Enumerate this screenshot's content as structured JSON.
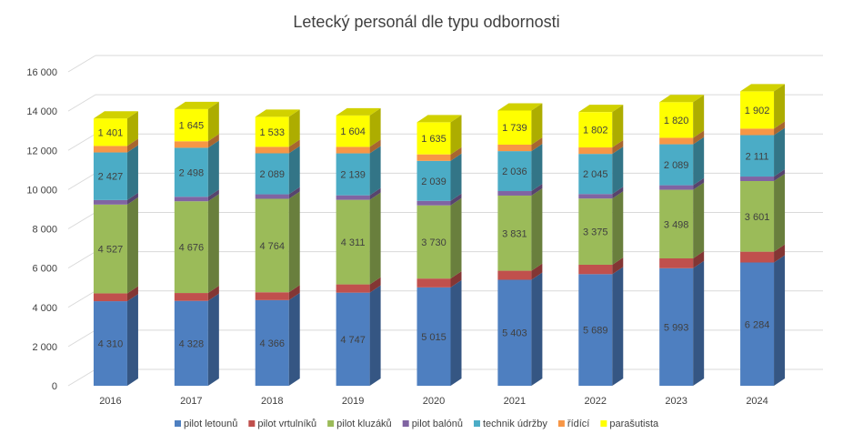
{
  "chart_data": {
    "type": "bar",
    "stacked": true,
    "three_d": true,
    "title": "Letecký personál dle typu odbornosti",
    "xlabel": "",
    "ylabel": "",
    "ylim": [
      0,
      16000
    ],
    "yticks": [
      {
        "value": 0,
        "label": "0"
      },
      {
        "value": 2000,
        "label": "2 000"
      },
      {
        "value": 4000,
        "label": "4 000"
      },
      {
        "value": 6000,
        "label": "6 000"
      },
      {
        "value": 8000,
        "label": "8 000"
      },
      {
        "value": 10000,
        "label": "10 000"
      },
      {
        "value": 12000,
        "label": "12 000"
      },
      {
        "value": 14000,
        "label": "14 000"
      },
      {
        "value": 16000,
        "label": "16 000"
      }
    ],
    "grid": true,
    "legend_position": "bottom",
    "categories": [
      "2016",
      "2017",
      "2018",
      "2019",
      "2020",
      "2021",
      "2022",
      "2023",
      "2024"
    ],
    "series": [
      {
        "name": "pilot letounů",
        "color": "#4E7FC0",
        "show_labels": true,
        "values": [
          4310,
          4328,
          4366,
          4747,
          5015,
          5403,
          5689,
          5993,
          6284
        ],
        "labels": [
          "4 310",
          "4 328",
          "4 366",
          "4 747",
          "5 015",
          "5 403",
          "5 689",
          "5 993",
          "6 284"
        ]
      },
      {
        "name": "pilot vrtulníků",
        "color": "#C0504D",
        "show_labels": false,
        "values": [
          400,
          400,
          400,
          420,
          450,
          460,
          480,
          500,
          550
        ],
        "labels": []
      },
      {
        "name": "pilot kluzáků",
        "color": "#9BBB59",
        "show_labels": true,
        "values": [
          4527,
          4676,
          4764,
          4311,
          3730,
          3831,
          3375,
          3498,
          3601
        ],
        "labels": [
          "4 527",
          "4 676",
          "4 764",
          "4 311",
          "3 730",
          "3 831",
          "3 375",
          "3 498",
          "3 601"
        ]
      },
      {
        "name": "pilot balónů",
        "color": "#8064A2",
        "show_labels": false,
        "values": [
          230,
          230,
          230,
          230,
          230,
          230,
          230,
          230,
          230
        ],
        "labels": []
      },
      {
        "name": "technik údržby",
        "color": "#4BACC6",
        "show_labels": true,
        "values": [
          2427,
          2498,
          2089,
          2139,
          2039,
          2036,
          2045,
          2089,
          2111
        ],
        "labels": [
          "2 427",
          "2 498",
          "2 089",
          "2 139",
          "2 039",
          "2 036",
          "2 045",
          "2 089",
          "2 111"
        ]
      },
      {
        "name": "řídící",
        "color": "#F79646",
        "show_labels": false,
        "values": [
          330,
          330,
          330,
          330,
          330,
          330,
          330,
          330,
          330
        ],
        "labels": []
      },
      {
        "name": "parašutista",
        "color": "#FFFF00",
        "show_labels": true,
        "values": [
          1401,
          1645,
          1533,
          1604,
          1635,
          1739,
          1802,
          1820,
          1902
        ],
        "labels": [
          "1 401",
          "1 645",
          "1 533",
          "1 604",
          "1 635",
          "1 739",
          "1 802",
          "1 820",
          "1 902"
        ]
      }
    ]
  }
}
